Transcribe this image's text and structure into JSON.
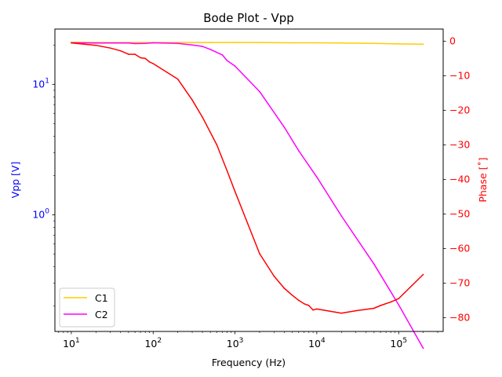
{
  "chart_data": {
    "type": "line",
    "title": "Bode Plot - Vpp",
    "xlabel": "Frequency (Hz)",
    "x_scale": "log",
    "xlim": [
      6.3,
      350000
    ],
    "x_ticks": [
      {
        "value": 10,
        "base": "10",
        "exp": "1"
      },
      {
        "value": 100,
        "base": "10",
        "exp": "2"
      },
      {
        "value": 1000,
        "base": "10",
        "exp": "3"
      },
      {
        "value": 10000,
        "base": "10",
        "exp": "4"
      },
      {
        "value": 100000,
        "base": "10",
        "exp": "5"
      }
    ],
    "left_axis": {
      "label": "Vpp [V]",
      "color": "#0000ff",
      "scale": "log",
      "ylim": [
        0.128,
        26.5
      ],
      "ticks": [
        {
          "value": 1,
          "base": "10",
          "exp": "0"
        },
        {
          "value": 10,
          "base": "10",
          "exp": "1"
        }
      ]
    },
    "right_axis": {
      "label": "Phase [˚]",
      "color": "#ff0000",
      "scale": "linear",
      "ylim": [
        -84,
        3.5
      ],
      "ticks": [
        0,
        -10,
        -20,
        -30,
        -40,
        -50,
        -60,
        -70,
        -80
      ],
      "tick_labels": [
        "0",
        "−10",
        "−20",
        "−30",
        "−40",
        "−50",
        "−60",
        "−70",
        "−80"
      ]
    },
    "legend": {
      "position": "lower-left",
      "entries": [
        "C1",
        "C2"
      ]
    },
    "grid": false,
    "series": [
      {
        "name": "C1",
        "axis": "left",
        "color": "#ffcc00",
        "x": [
          10,
          20,
          50,
          100,
          200,
          500,
          1000,
          2000,
          5000,
          10000,
          20000,
          50000,
          100000,
          200000
        ],
        "y": [
          21.0,
          20.9,
          20.9,
          20.9,
          20.9,
          20.9,
          20.9,
          20.9,
          20.8,
          20.8,
          20.7,
          20.6,
          20.4,
          20.3
        ]
      },
      {
        "name": "C2",
        "axis": "left",
        "color": "#ff00ff",
        "x": [
          10,
          20,
          50,
          60,
          80,
          100,
          200,
          300,
          400,
          500,
          700,
          800,
          1000,
          2000,
          4000,
          6000,
          10000,
          20000,
          50000,
          100000,
          200000
        ],
        "y": [
          20.8,
          20.7,
          20.7,
          20.5,
          20.6,
          20.8,
          20.6,
          20.0,
          19.5,
          18.5,
          16.8,
          15.2,
          13.8,
          8.8,
          4.7,
          3.1,
          1.95,
          0.98,
          0.42,
          0.205,
          0.095
        ]
      },
      {
        "name": "Phase",
        "axis": "right",
        "color": "#ff0000",
        "x": [
          10,
          20,
          30,
          40,
          50,
          60,
          70,
          80,
          90,
          100,
          200,
          300,
          400,
          600,
          800,
          1000,
          2000,
          3000,
          4000,
          5000,
          6000,
          7000,
          8000,
          9000,
          10000,
          20000,
          30000,
          50000,
          60000,
          80000,
          100000,
          200000
        ],
        "y": [
          -0.5,
          -1.2,
          -2.0,
          -2.8,
          -3.8,
          -3.8,
          -4.8,
          -5.0,
          -6.0,
          -6.5,
          -11.0,
          -17.0,
          -22.0,
          -30.0,
          -37.5,
          -43.5,
          -61.5,
          -68.0,
          -71.5,
          -73.5,
          -75.0,
          -76.0,
          -76.5,
          -77.8,
          -77.5,
          -78.7,
          -78.0,
          -77.3,
          -76.5,
          -75.5,
          -74.5,
          -67.5
        ]
      }
    ]
  }
}
